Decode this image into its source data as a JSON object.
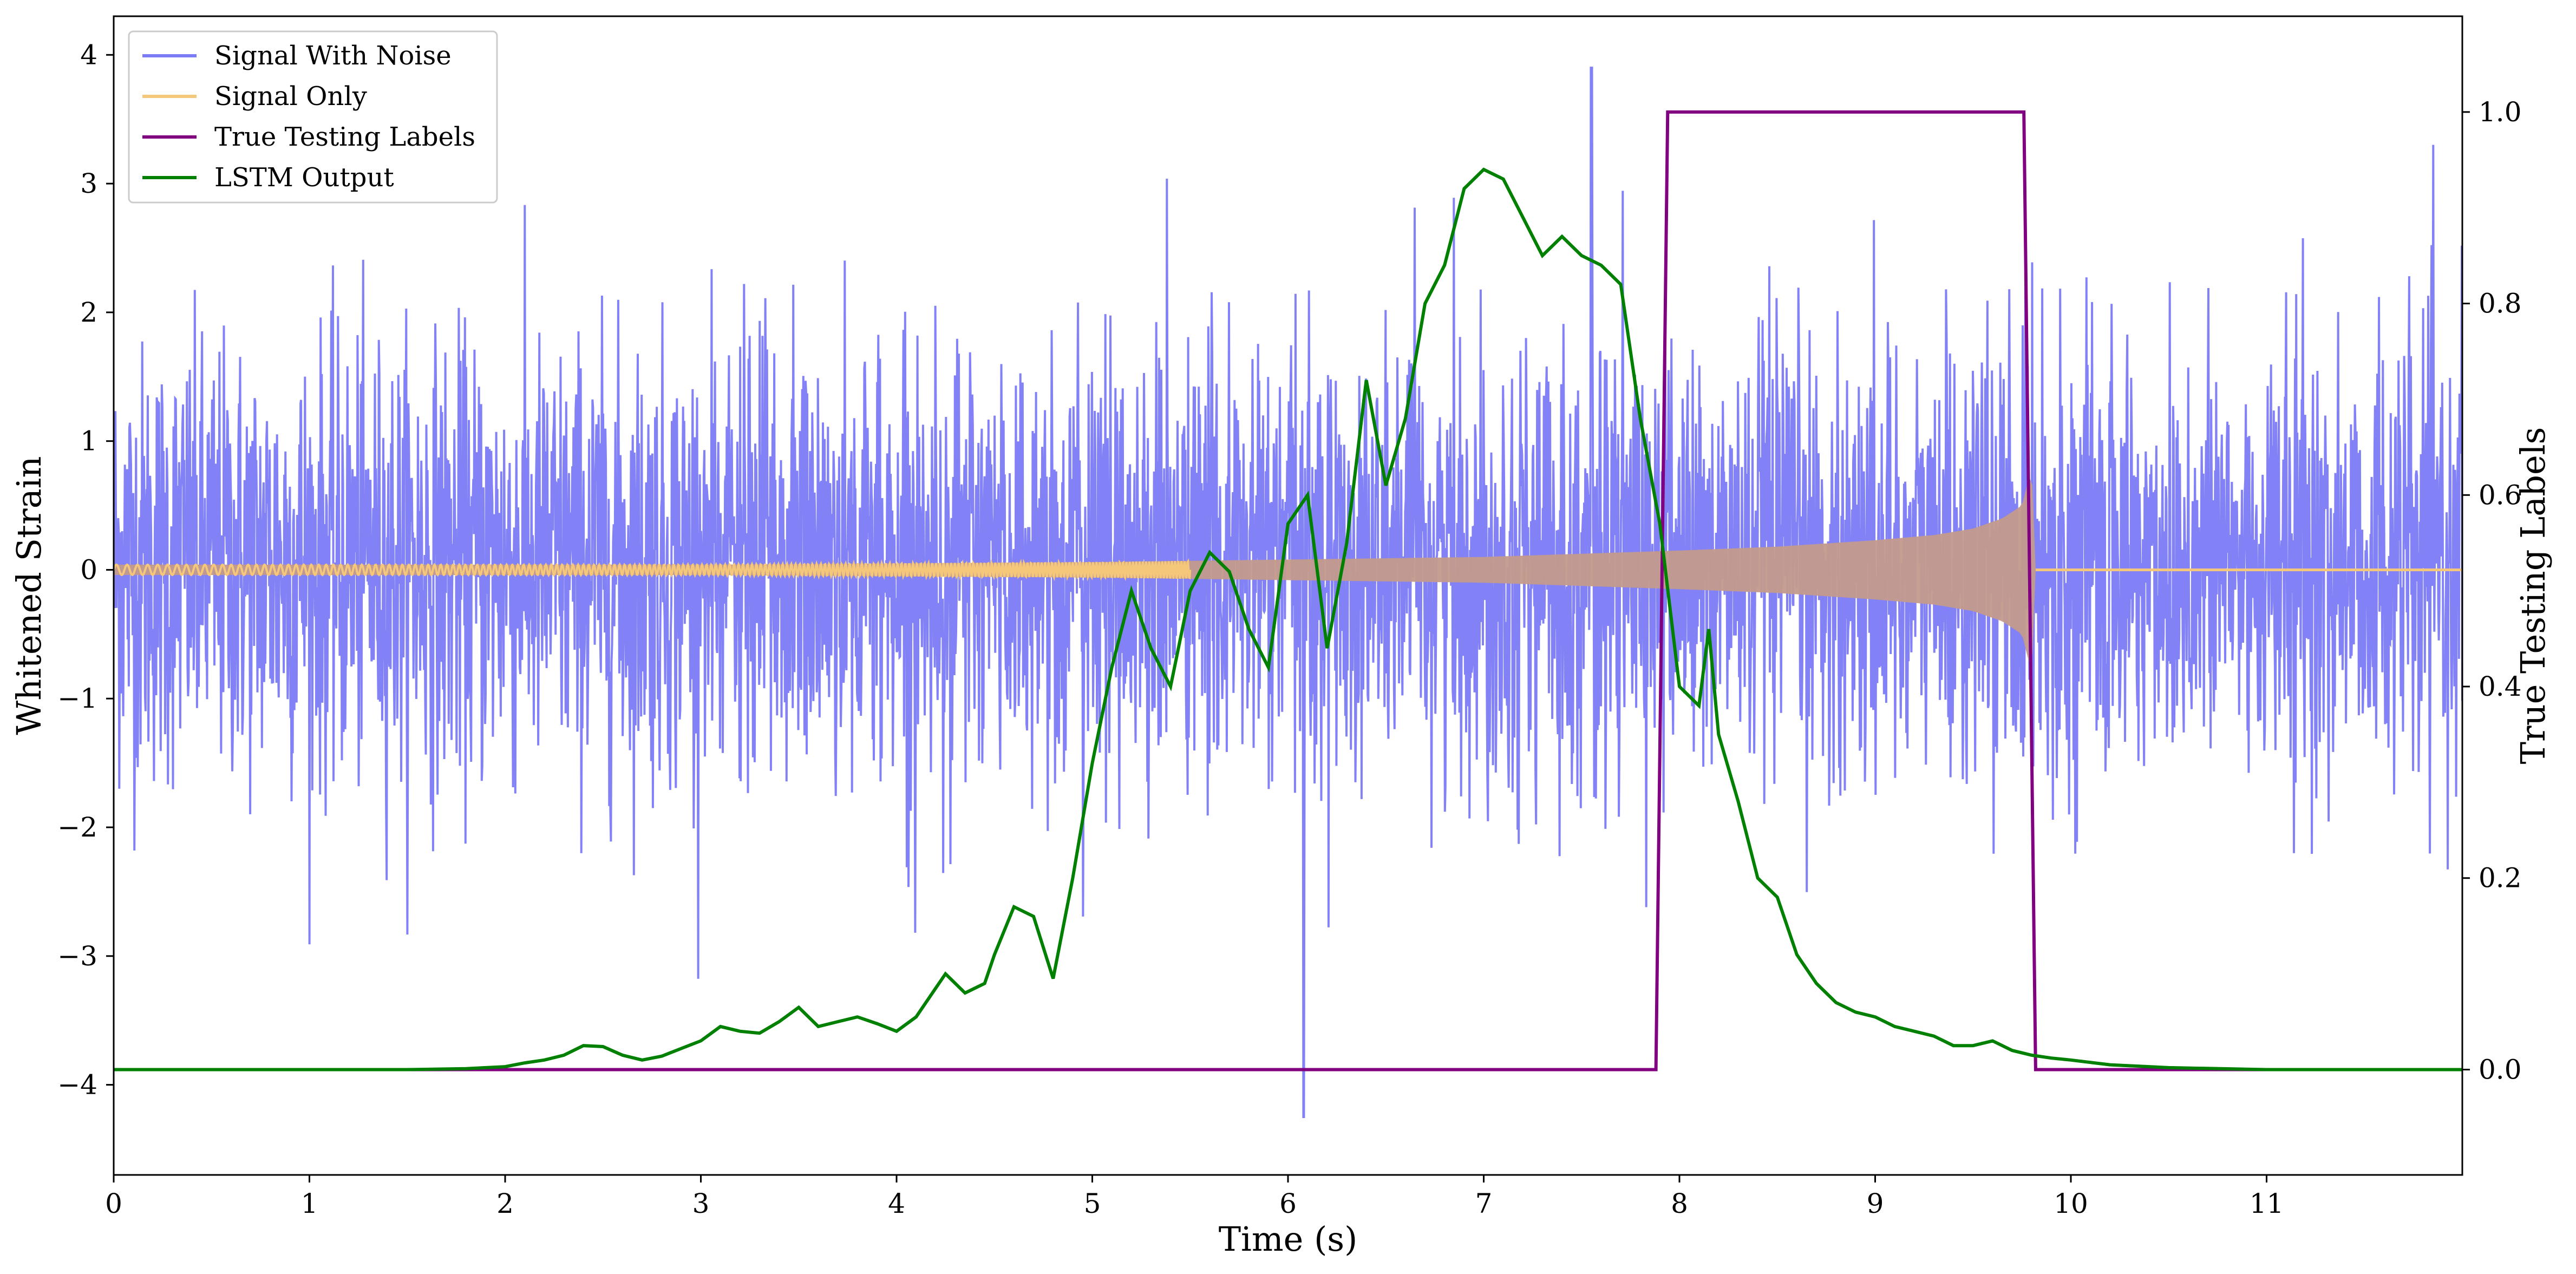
{
  "chart_data": {
    "type": "line",
    "xlabel": "Time (s)",
    "ylabel_left": "Whitened Strain",
    "ylabel_right": "True Testing Labels",
    "xlim": [
      0,
      12
    ],
    "ylim_left": [
      -4.7,
      4.3
    ],
    "ylim_right": [
      -0.11,
      1.1
    ],
    "x_ticks": [
      0,
      1,
      2,
      3,
      4,
      5,
      6,
      7,
      8,
      9,
      10,
      11
    ],
    "x_tick_labels": [
      "0",
      "1",
      "2",
      "3",
      "4",
      "5",
      "6",
      "7",
      "8",
      "9",
      "10",
      "11"
    ],
    "y_left_ticks": [
      -4,
      -3,
      -2,
      -1,
      0,
      1,
      2,
      3,
      4
    ],
    "y_left_tick_labels": [
      "−4",
      "−3",
      "−2",
      "−1",
      "0",
      "1",
      "2",
      "3",
      "4"
    ],
    "y_right_ticks": [
      0.0,
      0.2,
      0.4,
      0.6,
      0.8,
      1.0
    ],
    "y_right_tick_labels": [
      "0.0",
      "0.2",
      "0.4",
      "0.6",
      "0.8",
      "1.0"
    ],
    "grid": false,
    "legend_position": "top-left",
    "legend": [
      "Signal With Noise",
      "Signal Only",
      "True Testing Labels",
      "LSTM Output"
    ],
    "colors": {
      "noise": "#7b7bf6",
      "signal": "#f5c77a",
      "signal_overlap": "#c39a8c",
      "labels": "#800080",
      "lstm": "#008000"
    },
    "series": [
      {
        "name": "Signal With Noise",
        "axis": "left",
        "description_values": {
          "std": 0.85,
          "typical_range": [
            -2.5,
            3.5
          ],
          "min": -4.25,
          "min_x": 6.08,
          "max": 3.9,
          "max_x": 7.55
        }
      },
      {
        "name": "Signal Only",
        "axis": "left",
        "envelope": {
          "x": [
            0,
            1,
            2,
            3,
            4,
            5,
            6,
            7,
            8,
            8.5,
            9,
            9.3,
            9.5,
            9.65,
            9.75,
            9.8,
            9.82,
            12
          ],
          "amplitude": [
            0.04,
            0.04,
            0.04,
            0.04,
            0.05,
            0.06,
            0.08,
            0.1,
            0.15,
            0.18,
            0.23,
            0.27,
            0.32,
            0.4,
            0.5,
            0.8,
            0.0,
            0.0
          ]
        }
      },
      {
        "name": "True Testing Labels",
        "axis": "right",
        "x": [
          0,
          7.88,
          7.94,
          9.76,
          9.82,
          12
        ],
        "y": [
          0,
          0,
          1,
          1,
          0,
          0
        ]
      },
      {
        "name": "LSTM Output",
        "axis": "right",
        "x": [
          0,
          0.5,
          1.0,
          1.5,
          1.8,
          2.0,
          2.1,
          2.2,
          2.3,
          2.4,
          2.5,
          2.6,
          2.7,
          2.8,
          2.9,
          3.0,
          3.1,
          3.2,
          3.3,
          3.4,
          3.5,
          3.6,
          3.7,
          3.8,
          3.9,
          4.0,
          4.1,
          4.2,
          4.25,
          4.35,
          4.45,
          4.5,
          4.6,
          4.7,
          4.8,
          4.9,
          5.0,
          5.1,
          5.2,
          5.3,
          5.4,
          5.5,
          5.6,
          5.7,
          5.8,
          5.9,
          6.0,
          6.1,
          6.2,
          6.3,
          6.4,
          6.5,
          6.6,
          6.7,
          6.8,
          6.9,
          7.0,
          7.1,
          7.2,
          7.3,
          7.4,
          7.5,
          7.6,
          7.7,
          7.8,
          7.9,
          8.0,
          8.1,
          8.15,
          8.2,
          8.3,
          8.4,
          8.5,
          8.6,
          8.7,
          8.8,
          8.9,
          9.0,
          9.1,
          9.2,
          9.3,
          9.4,
          9.5,
          9.6,
          9.7,
          9.8,
          9.9,
          10.0,
          10.2,
          10.5,
          11.0,
          12.0
        ],
        "y": [
          0.0,
          0.0,
          0.0,
          0.0,
          0.001,
          0.003,
          0.007,
          0.01,
          0.015,
          0.025,
          0.024,
          0.015,
          0.01,
          0.014,
          0.022,
          0.03,
          0.045,
          0.04,
          0.038,
          0.05,
          0.065,
          0.045,
          0.05,
          0.055,
          0.048,
          0.04,
          0.055,
          0.085,
          0.1,
          0.08,
          0.09,
          0.12,
          0.17,
          0.16,
          0.095,
          0.2,
          0.32,
          0.42,
          0.5,
          0.44,
          0.4,
          0.5,
          0.54,
          0.52,
          0.46,
          0.42,
          0.57,
          0.6,
          0.44,
          0.55,
          0.72,
          0.61,
          0.68,
          0.8,
          0.84,
          0.92,
          0.94,
          0.93,
          0.89,
          0.85,
          0.87,
          0.85,
          0.84,
          0.82,
          0.68,
          0.57,
          0.4,
          0.38,
          0.46,
          0.35,
          0.28,
          0.2,
          0.18,
          0.12,
          0.09,
          0.07,
          0.06,
          0.055,
          0.045,
          0.04,
          0.035,
          0.025,
          0.025,
          0.03,
          0.02,
          0.015,
          0.012,
          0.01,
          0.005,
          0.002,
          0.0,
          0.0
        ]
      }
    ]
  }
}
